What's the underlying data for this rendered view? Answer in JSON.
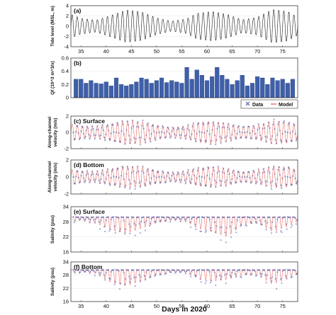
{
  "figure": {
    "xlabel": "Days in 2020"
  },
  "legend": {
    "data_label": "Data",
    "model_label": "Model",
    "data_color": "#3a4fa0",
    "model_color": "#e8524f"
  },
  "chart_data": [
    {
      "id": "a",
      "type": "line",
      "label": "(a)",
      "ylabel": "Tide level (MSL, m)",
      "xlim": [
        33,
        78
      ],
      "ylim": [
        -4,
        4
      ],
      "yticks": [
        -4,
        -2,
        0,
        2,
        4
      ],
      "xticks": [
        35,
        40,
        45,
        50,
        55,
        60,
        65,
        70,
        75
      ],
      "color": "#222222",
      "amplitude_envelope": {
        "x": [
          33,
          35,
          38,
          41,
          44,
          47,
          50,
          53,
          56,
          58,
          61,
          64,
          67,
          70,
          73,
          76,
          78
        ],
        "y": [
          2.4,
          1.6,
          1.2,
          2.2,
          3.3,
          2.9,
          1.7,
          1.0,
          1.5,
          2.6,
          3.0,
          2.4,
          1.3,
          1.8,
          3.4,
          3.0,
          1.8
        ]
      }
    },
    {
      "id": "b",
      "type": "bar",
      "label": "(b)",
      "ylabel": "Qf (10^3 m^3/s)",
      "xlim": [
        33,
        78
      ],
      "ylim": [
        0,
        0.6
      ],
      "yticks": [
        0,
        0.2,
        0.4,
        0.6
      ],
      "color": "#3f5fa8",
      "x": [
        34,
        35,
        36,
        37,
        38,
        39,
        40,
        41,
        42,
        43,
        44,
        45,
        46,
        47,
        48,
        49,
        50,
        51,
        52,
        53,
        54,
        55,
        56,
        57,
        58,
        59,
        60,
        61,
        62,
        63,
        64,
        65,
        66,
        67,
        68,
        69,
        70,
        71,
        72,
        73,
        74,
        75,
        76,
        77
      ],
      "values": [
        0.28,
        0.28,
        0.22,
        0.26,
        0.22,
        0.21,
        0.24,
        0.18,
        0.3,
        0.2,
        0.18,
        0.2,
        0.24,
        0.3,
        0.28,
        0.22,
        0.26,
        0.3,
        0.23,
        0.26,
        0.24,
        0.22,
        0.46,
        0.28,
        0.42,
        0.34,
        0.26,
        0.32,
        0.46,
        0.34,
        0.28,
        0.2,
        0.26,
        0.34,
        0.18,
        0.22,
        0.32,
        0.3,
        0.2,
        0.3,
        0.26,
        0.28,
        0.22,
        0.28
      ]
    },
    {
      "id": "c",
      "type": "scatter",
      "label": "(c) Surface",
      "ylabel": "Along-channel velocity (m/s)",
      "xlim": [
        33,
        78
      ],
      "ylim": [
        -2,
        2
      ],
      "yticks": [
        -2,
        0,
        2
      ],
      "amplitude_envelope": {
        "x": [
          33,
          35,
          38,
          41,
          44,
          47,
          50,
          53,
          56,
          58,
          61,
          64,
          67,
          70,
          73,
          76,
          78
        ],
        "y": [
          1.1,
          0.8,
          0.7,
          1.1,
          1.45,
          1.35,
          0.9,
          0.6,
          0.8,
          1.2,
          1.4,
          1.1,
          0.7,
          0.9,
          1.45,
          1.3,
          0.9
        ]
      }
    },
    {
      "id": "d",
      "type": "scatter",
      "label": "(d) Bottom",
      "ylabel": "Along-channel velocity (m/s)",
      "xlim": [
        33,
        78
      ],
      "ylim": [
        -2,
        2
      ],
      "yticks": [
        -2,
        0,
        2
      ],
      "amplitude_envelope": {
        "x": [
          33,
          35,
          38,
          41,
          44,
          47,
          50,
          53,
          56,
          58,
          61,
          64,
          67,
          70,
          73,
          76,
          78
        ],
        "y": [
          0.9,
          0.7,
          0.6,
          1.0,
          1.3,
          1.2,
          0.8,
          0.55,
          0.7,
          1.05,
          1.25,
          1.0,
          0.6,
          0.8,
          1.3,
          1.2,
          0.8
        ]
      }
    },
    {
      "id": "e",
      "type": "scatter",
      "label": "(e) Surface",
      "ylabel": "Salinity (psu)",
      "xlim": [
        33,
        78
      ],
      "ylim": [
        16,
        34
      ],
      "yticks": [
        16,
        22,
        28,
        34
      ],
      "salinity_base": 30,
      "dip_envelope": {
        "x": [
          33,
          35,
          38,
          41,
          44,
          47,
          50,
          53,
          56,
          58,
          61,
          64,
          67,
          70,
          73,
          76,
          78
        ],
        "y": [
          1.5,
          1.2,
          2.0,
          4.0,
          5.0,
          3.5,
          2.0,
          1.2,
          1.5,
          3.5,
          4.5,
          6.0,
          2.5,
          2.0,
          4.5,
          3.0,
          1.5
        ]
      }
    },
    {
      "id": "f",
      "type": "scatter",
      "label": "(f) Bottom",
      "ylabel": "Salinity (psu)",
      "xlim": [
        33,
        78
      ],
      "ylim": [
        16,
        34
      ],
      "yticks": [
        16,
        22,
        28,
        34
      ],
      "salinity_base": 30.5,
      "dip_envelope": {
        "x": [
          33,
          35,
          38,
          41,
          44,
          47,
          50,
          53,
          56,
          58,
          61,
          64,
          67,
          70,
          73,
          76,
          78
        ],
        "y": [
          1.0,
          1.0,
          1.5,
          4.5,
          5.5,
          4.0,
          2.0,
          1.0,
          1.2,
          3.0,
          4.0,
          3.5,
          2.0,
          2.0,
          5.0,
          3.0,
          1.5
        ]
      }
    }
  ]
}
